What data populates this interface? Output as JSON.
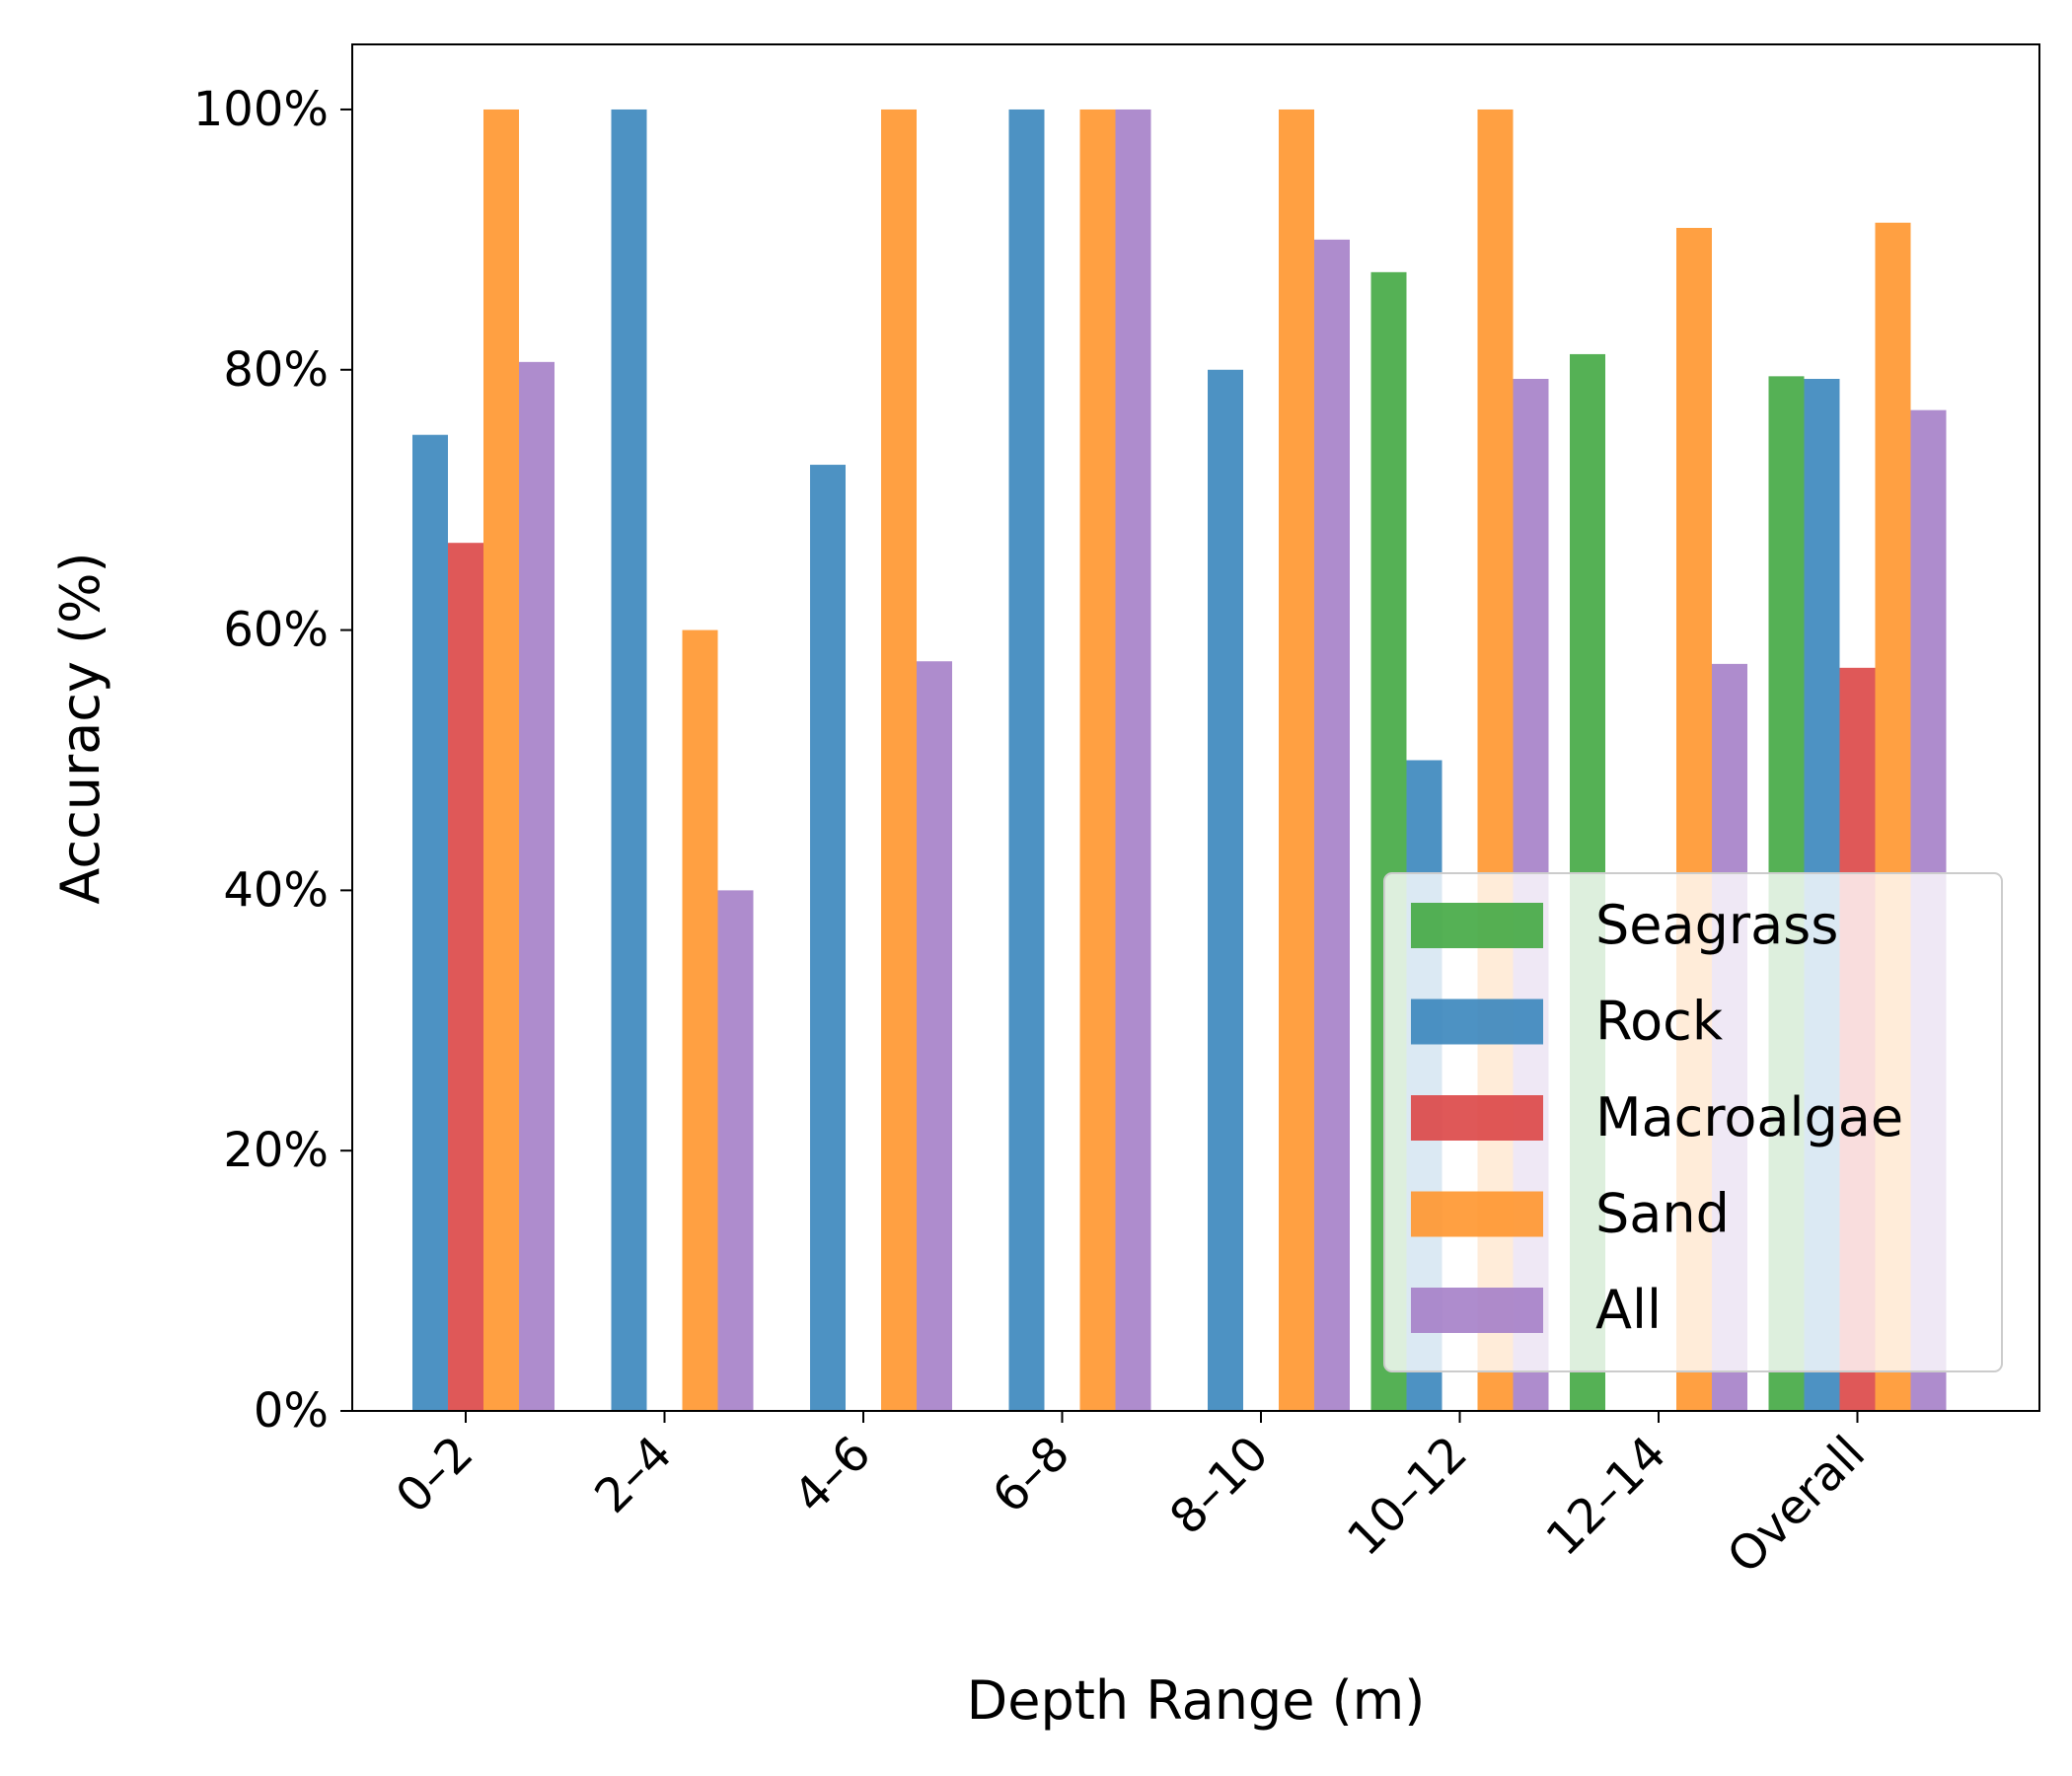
{
  "chart_data": {
    "type": "bar",
    "title": "",
    "xlabel": "Depth Range (m)",
    "ylabel": "Accuracy (%)",
    "ylim": [
      0,
      105
    ],
    "yticks": [
      0,
      20,
      40,
      60,
      80,
      100
    ],
    "ytick_labels": [
      "0%",
      "20%",
      "40%",
      "60%",
      "80%",
      "100%"
    ],
    "categories": [
      "0–2",
      "2–4",
      "4–6",
      "6–8",
      "8–10",
      "10–12",
      "12–14",
      "Overall"
    ],
    "legend_position": "lower-right",
    "grid": false,
    "series": [
      {
        "name": "Seagrass",
        "color": "#43a942",
        "values": [
          0,
          0,
          0,
          0,
          0,
          87.5,
          81.2,
          79.5
        ]
      },
      {
        "name": "Rock",
        "color": "#3a86bd",
        "values": [
          75.0,
          100.0,
          72.7,
          100.0,
          80.0,
          50.0,
          0,
          79.3
        ]
      },
      {
        "name": "Macroalgae",
        "color": "#dc4646",
        "values": [
          66.7,
          0,
          0,
          0,
          0,
          0,
          0,
          57.1
        ]
      },
      {
        "name": "Sand",
        "color": "#ff962e",
        "values": [
          100.0,
          60.0,
          100.0,
          100.0,
          100.0,
          100.0,
          90.9,
          91.3
        ]
      },
      {
        "name": "All",
        "color": "#a57fc8",
        "values": [
          80.6,
          40.0,
          57.6,
          100.0,
          90.0,
          79.3,
          57.4,
          76.9
        ]
      }
    ]
  }
}
